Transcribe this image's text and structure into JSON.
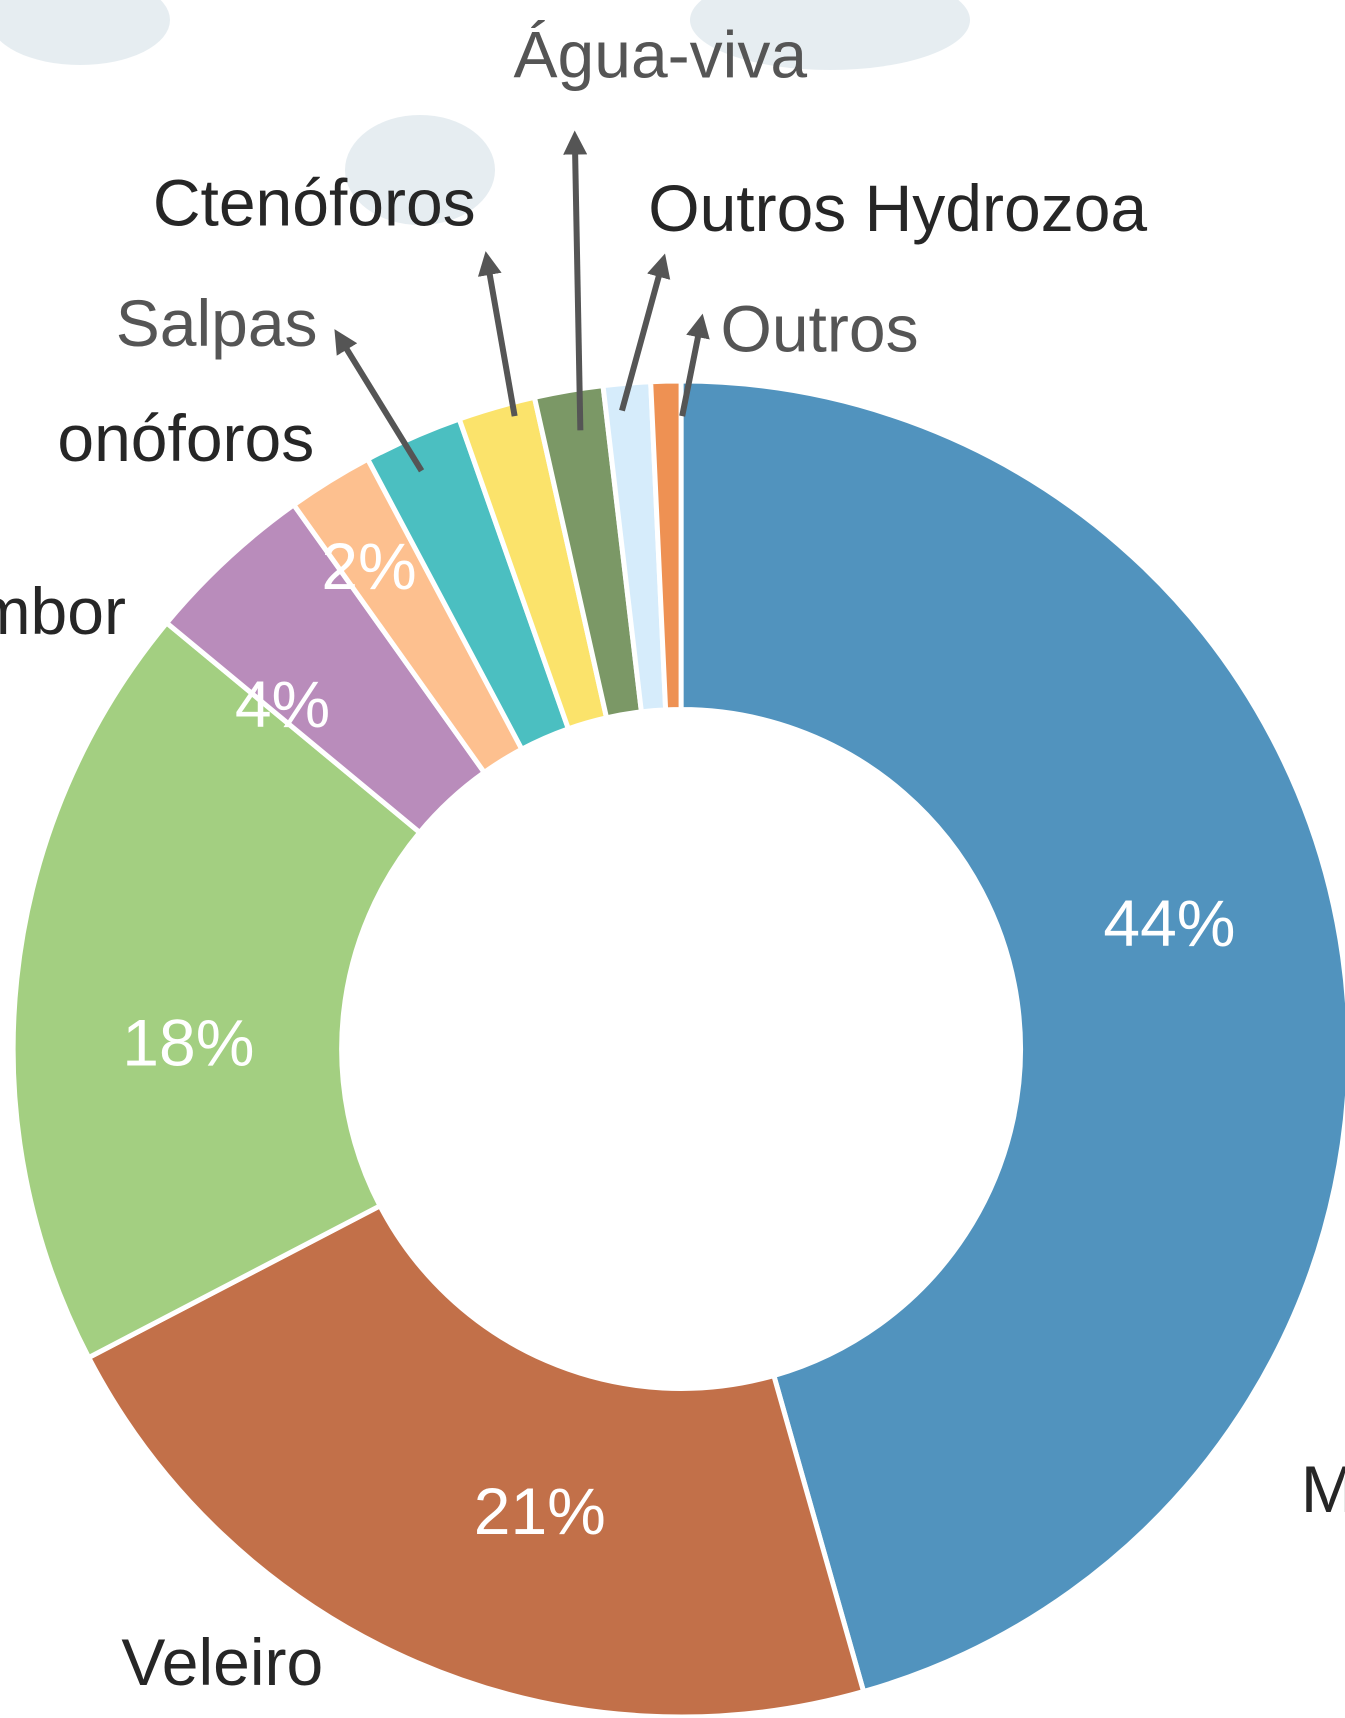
{
  "chart_data": {
    "type": "donut",
    "categories": [
      "M",
      "Veleiro",
      null,
      "mbor",
      "onóforos",
      "Salpas",
      "Ctenóforos",
      "Água-viva",
      "Outros Hydrozoa",
      "Outros"
    ],
    "values": [
      44,
      21,
      18,
      4,
      2,
      2.3,
      1.8,
      1.6,
      1.1,
      0.7
    ],
    "value_labels": [
      "44%",
      "21%",
      "18%",
      "4%",
      "2%",
      null,
      null,
      null,
      null,
      null
    ],
    "colors": [
      "#5193be",
      "#c27049",
      "#a3cf81",
      "#b98cbb",
      "#fdc08f",
      "#4bbfc1",
      "#fbe36b",
      "#7b9866",
      "#d6ecfb",
      "#ee9153"
    ]
  }
}
